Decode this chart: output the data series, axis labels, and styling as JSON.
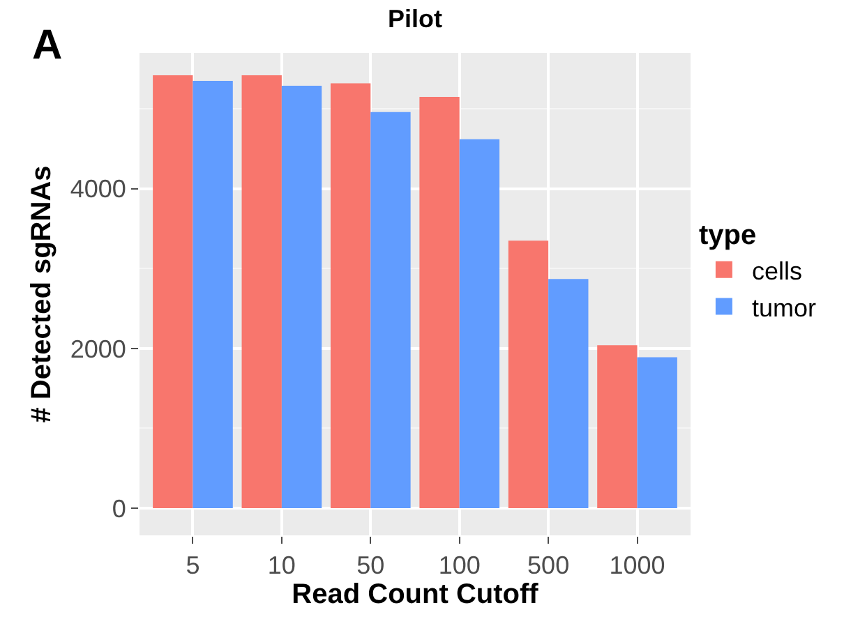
{
  "chart_data": {
    "type": "bar",
    "title": "Pilot",
    "xlabel": "Read Count Cutoff",
    "ylabel": "# Detected sgRNAs",
    "legend_title": "type",
    "categories": [
      "5",
      "10",
      "50",
      "100",
      "500",
      "1000"
    ],
    "series": [
      {
        "name": "cells",
        "color": "#f8766d",
        "values": [
          5420,
          5420,
          5320,
          5150,
          3350,
          2040
        ]
      },
      {
        "name": "tumor",
        "color": "#619cff",
        "values": [
          5350,
          5290,
          4960,
          4620,
          2870,
          1890
        ]
      }
    ],
    "ylim": [
      -340,
      5700
    ],
    "yticks": [
      0,
      2000,
      4000
    ],
    "grid": true,
    "legend": "right",
    "annotations": [
      "A"
    ]
  }
}
